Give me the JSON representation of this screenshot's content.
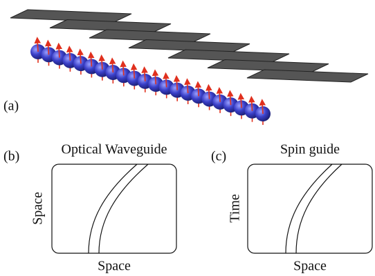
{
  "panels": [
    {
      "label": "(a)"
    },
    {
      "label": "(b)",
      "title": "Optical Waveguide",
      "y_label": "Space",
      "x_label": "Space"
    },
    {
      "label": "(c)",
      "title": "Spin guide",
      "y_label": "Time",
      "x_label": "Space"
    }
  ]
}
